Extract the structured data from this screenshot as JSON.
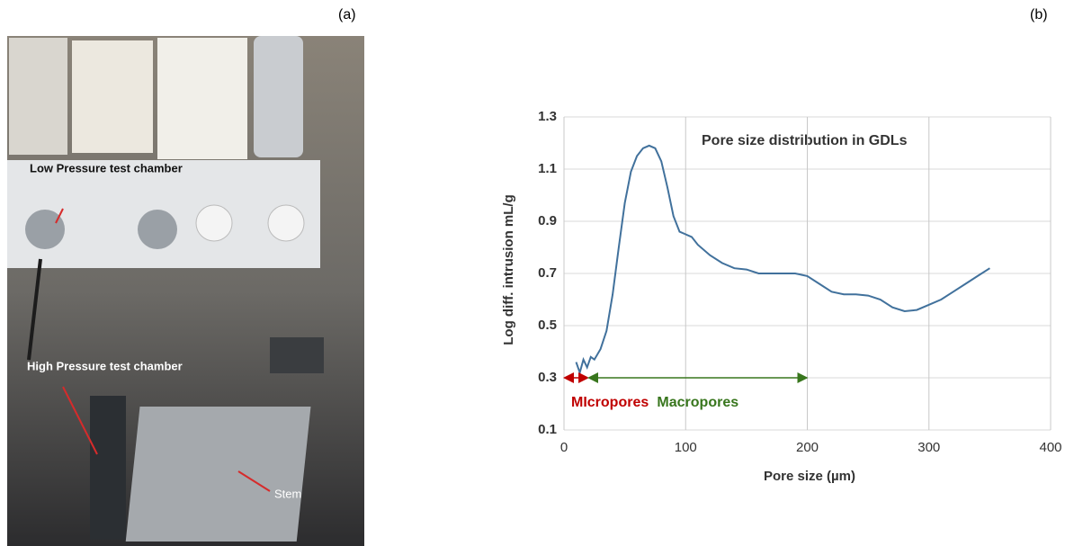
{
  "panels": {
    "a": {
      "label": "(a)",
      "annotations": [
        "Low Pressure test chamber",
        "High Pressure test chamber",
        "Stem"
      ]
    },
    "b": {
      "label": "(b)"
    }
  },
  "chart_data": {
    "type": "line",
    "title": "Pore size distribution in GDLs",
    "x_label": "Pore size (µm)",
    "y_label": "Log diff. intrusion mL/g",
    "xlim": [
      0,
      400
    ],
    "xticks": [
      0,
      100,
      200,
      300,
      400
    ],
    "ylim": [
      0.1,
      1.3
    ],
    "yticks": [
      0.1,
      0.3,
      0.5,
      0.7,
      0.9,
      1.1,
      1.3
    ],
    "grid": true,
    "series": [
      {
        "color": "#41719c",
        "x": [
          10,
          13,
          16,
          19,
          22,
          25,
          30,
          35,
          40,
          45,
          50,
          55,
          60,
          65,
          70,
          75,
          80,
          85,
          90,
          95,
          100,
          105,
          110,
          120,
          130,
          140,
          150,
          160,
          170,
          180,
          190,
          200,
          210,
          220,
          230,
          240,
          250,
          260,
          270,
          280,
          290,
          300,
          310,
          320,
          330,
          340,
          350
        ],
        "values": [
          0.36,
          0.32,
          0.37,
          0.34,
          0.38,
          0.37,
          0.41,
          0.48,
          0.62,
          0.8,
          0.97,
          1.09,
          1.15,
          1.18,
          1.19,
          1.18,
          1.13,
          1.03,
          0.92,
          0.86,
          0.85,
          0.84,
          0.81,
          0.77,
          0.74,
          0.72,
          0.715,
          0.7,
          0.7,
          0.7,
          0.7,
          0.69,
          0.66,
          0.63,
          0.62,
          0.62,
          0.615,
          0.6,
          0.57,
          0.555,
          0.56,
          0.58,
          0.6,
          0.63,
          0.66,
          0.69,
          0.72
        ]
      }
    ],
    "ranges": [
      {
        "label": "MIcropores",
        "color": "#c00000",
        "x": [
          0,
          20
        ],
        "y": 0.3
      },
      {
        "label": "Macropores",
        "color": "#38761d",
        "x": [
          20,
          200
        ],
        "y": 0.3
      }
    ]
  }
}
